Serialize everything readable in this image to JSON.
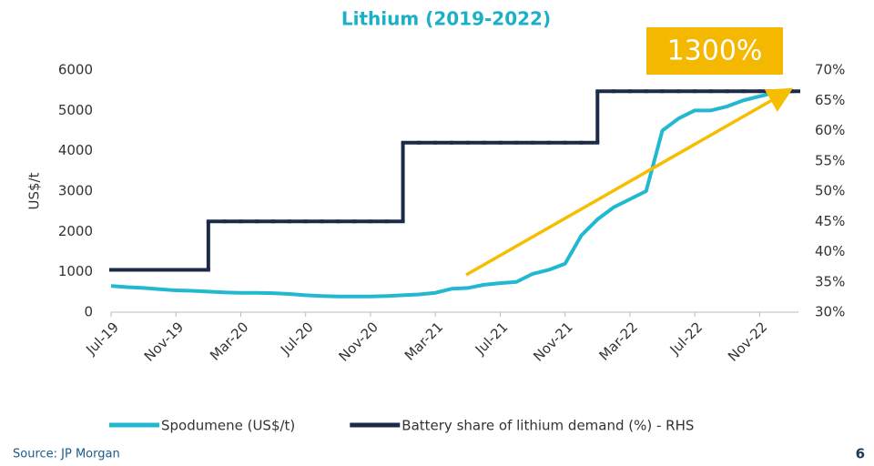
{
  "chart_data": {
    "type": "line",
    "title": "Lithium (2019-2022)",
    "y_label": "US$/t",
    "annotation": "1300%",
    "source": "Source: JP Morgan",
    "page_number": "6",
    "categories": [
      "Jul-19",
      null,
      null,
      null,
      "Nov-19",
      null,
      null,
      null,
      "Mar-20",
      null,
      null,
      null,
      "Jul-20",
      null,
      null,
      null,
      "Nov-20",
      null,
      null,
      null,
      "Mar-21",
      null,
      null,
      null,
      "Jul-21",
      null,
      null,
      null,
      "Nov-21",
      null,
      null,
      null,
      "Mar-22",
      null,
      null,
      null,
      "Jul-22",
      null,
      null,
      null,
      "Nov-22",
      null,
      null
    ],
    "series": [
      {
        "name": "Spodumene (US$/t)",
        "color": "#22b8cf",
        "step": false,
        "values": [
          650,
          620,
          600,
          570,
          540,
          530,
          510,
          490,
          480,
          480,
          470,
          450,
          420,
          400,
          390,
          390,
          390,
          400,
          420,
          440,
          480,
          580,
          600,
          680,
          720,
          750,
          950,
          1050,
          1200,
          1900,
          2300,
          2600,
          2800,
          3000,
          4500,
          4800,
          5000,
          5000,
          5100,
          5250,
          5350,
          5450,
          5500
        ]
      },
      {
        "name": "Battery share of lithium demand (%) - RHS",
        "color": "#1c2a4a",
        "axis": "y2",
        "step": true,
        "values": [
          37,
          37,
          37,
          37,
          37,
          37,
          45,
          45,
          45,
          45,
          45,
          45,
          45,
          45,
          45,
          45,
          45,
          45,
          58,
          58,
          58,
          58,
          58,
          58,
          58,
          58,
          58,
          58,
          58,
          58,
          66.5,
          66.5,
          66.5,
          66.5,
          66.5,
          66.5,
          66.5,
          66.5,
          66.5,
          66.5,
          66.5,
          66.5,
          66.5
        ]
      }
    ],
    "ylim": [
      0,
      6000
    ],
    "yticks": [
      0,
      1000,
      2000,
      3000,
      4000,
      5000,
      6000
    ],
    "y2lim": [
      30,
      70
    ],
    "y2ticks": [
      {
        "value": 30,
        "label": "30%"
      },
      {
        "value": 35,
        "label": "35%"
      },
      {
        "value": 40,
        "label": "40%"
      },
      {
        "value": 45,
        "label": "45%"
      },
      {
        "value": 50,
        "label": "50%"
      },
      {
        "value": 55,
        "label": "55%"
      },
      {
        "value": 60,
        "label": "60%"
      },
      {
        "value": 65,
        "label": "65%"
      },
      {
        "value": 70,
        "label": "70%"
      }
    ],
    "grid": false,
    "legend": "bottom"
  }
}
